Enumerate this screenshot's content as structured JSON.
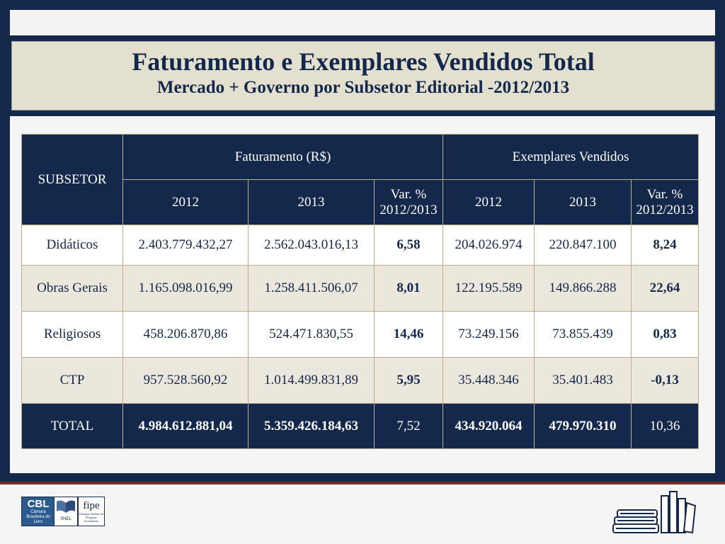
{
  "header": {
    "title": "Faturamento e Exemplares Vendidos Total",
    "subtitle": "Mercado + Governo por Subsetor Editorial -2012/2013"
  },
  "table": {
    "subsetor_header": "SUBSETOR",
    "group_faturamento": "Faturamento (R$)",
    "group_exemplares": "Exemplares Vendidos",
    "col_2012": "2012",
    "col_2013": "2013",
    "col_var_line1": "Var. %",
    "col_var_line2": "2012/2013",
    "rows": [
      {
        "subsetor": "Didáticos",
        "fat_2012": "2.403.779.432,27",
        "fat_2013": "2.562.043.016,13",
        "fat_var": "6,58",
        "ex_2012": "204.026.974",
        "ex_2013": "220.847.100",
        "ex_var": "8,24"
      },
      {
        "subsetor": "Obras Gerais",
        "fat_2012": "1.165.098.016,99",
        "fat_2013": "1.258.411.506,07",
        "fat_var": "8,01",
        "ex_2012": "122.195.589",
        "ex_2013": "149.866.288",
        "ex_var": "22,64"
      },
      {
        "subsetor": "Religiosos",
        "fat_2012": "458.206.870,86",
        "fat_2013": "524.471.830,55",
        "fat_var": "14,46",
        "ex_2012": "73.249.156",
        "ex_2013": "73.855.439",
        "ex_var": "0,83"
      },
      {
        "subsetor": "CTP",
        "fat_2012": "957.528.560,92",
        "fat_2013": "1.014.499.831,89",
        "fat_var": "5,95",
        "ex_2012": "35.448.346",
        "ex_2013": "35.401.483",
        "ex_var": "-0,13"
      }
    ],
    "total": {
      "subsetor": "TOTAL",
      "fat_2012": "4.984.612.881,04",
      "fat_2013": "5.359.426.184,63",
      "fat_var": "7,52",
      "ex_2012": "434.920.064",
      "ex_2013": "479.970.310",
      "ex_var": "10,36"
    }
  },
  "footer": {
    "cbl_logo_big": "CBL",
    "cbl_logo_small": "Câmara Brasileira do Livro",
    "snel_logo": "SNEL",
    "fipe_logo": "fipe",
    "fipe_logo_small": "Fundação Instituto de Pesquisas Econômicas",
    "books_icon": "books-icon"
  },
  "colors": {
    "navy": "#13284a",
    "beige": "#e4e0d0",
    "row_alt": "#ebe7dc",
    "rule": "#7a2a22"
  }
}
